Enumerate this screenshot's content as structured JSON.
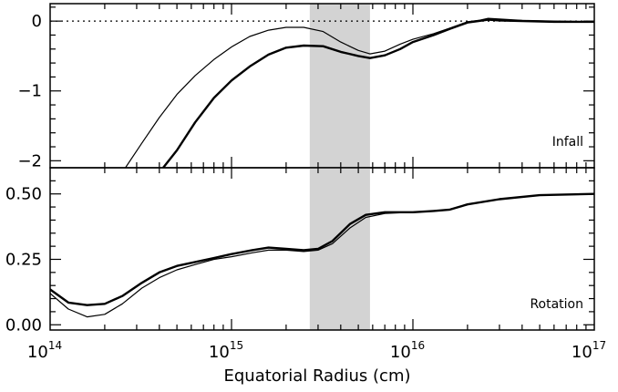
{
  "chart_data": [
    {
      "type": "line",
      "panel_label": "Infall",
      "x_scale": "log",
      "xlim": [
        100000000000000.0,
        1e+17
      ],
      "ylim": [
        -2.1,
        0.25
      ],
      "yticks": [
        0,
        -1,
        -2
      ],
      "ytick_labels": [
        "0",
        "−1",
        "−2"
      ],
      "reference_line": {
        "y": 0,
        "style": "dotted"
      },
      "shaded_band_x": [
        2700000000000000.0,
        5800000000000000.0
      ],
      "series": [
        {
          "style": "thin",
          "points": [
            [
              260000000000000.0,
              -2.1
            ],
            [
              320000000000000.0,
              -1.75
            ],
            [
              400000000000000.0,
              -1.38
            ],
            [
              500000000000000.0,
              -1.05
            ],
            [
              630000000000000.0,
              -0.78
            ],
            [
              800000000000000.0,
              -0.55
            ],
            [
              1000000000000000.0,
              -0.37
            ],
            [
              1260000000000000.0,
              -0.22
            ],
            [
              1600000000000000.0,
              -0.13
            ],
            [
              2000000000000000.0,
              -0.09
            ],
            [
              2500000000000000.0,
              -0.09
            ],
            [
              3200000000000000.0,
              -0.15
            ],
            [
              4000000000000000.0,
              -0.3
            ],
            [
              5000000000000000.0,
              -0.42
            ],
            [
              5800000000000000.0,
              -0.47
            ],
            [
              7000000000000000.0,
              -0.43
            ],
            [
              8500000000000000.0,
              -0.33
            ],
            [
              1e+16,
              -0.26
            ],
            [
              1.3e+16,
              -0.18
            ],
            [
              1.6e+16,
              -0.1
            ],
            [
              2e+16,
              -0.01
            ],
            [
              2.3e+16,
              0.01
            ],
            [
              2.6e+16,
              0.04
            ],
            [
              3e+16,
              0.03
            ],
            [
              4e+16,
              0.01
            ],
            [
              6e+16,
              0.0
            ],
            [
              1e+17,
              -0.01
            ]
          ]
        },
        {
          "style": "thick",
          "points": [
            [
              420000000000000.0,
              -2.1
            ],
            [
              500000000000000.0,
              -1.85
            ],
            [
              630000000000000.0,
              -1.45
            ],
            [
              800000000000000.0,
              -1.1
            ],
            [
              1000000000000000.0,
              -0.85
            ],
            [
              1260000000000000.0,
              -0.65
            ],
            [
              1600000000000000.0,
              -0.48
            ],
            [
              2000000000000000.0,
              -0.38
            ],
            [
              2500000000000000.0,
              -0.35
            ],
            [
              3200000000000000.0,
              -0.36
            ],
            [
              4000000000000000.0,
              -0.44
            ],
            [
              5000000000000000.0,
              -0.5
            ],
            [
              5800000000000000.0,
              -0.53
            ],
            [
              7000000000000000.0,
              -0.49
            ],
            [
              8500000000000000.0,
              -0.4
            ],
            [
              1e+16,
              -0.3
            ],
            [
              1.3e+16,
              -0.2
            ],
            [
              1.6e+16,
              -0.11
            ],
            [
              2e+16,
              -0.02
            ],
            [
              2.3e+16,
              0.0
            ],
            [
              2.6e+16,
              0.02
            ],
            [
              3e+16,
              0.01
            ],
            [
              4e+16,
              0.0
            ],
            [
              6e+16,
              -0.01
            ],
            [
              1e+17,
              -0.01
            ]
          ]
        }
      ]
    },
    {
      "type": "line",
      "panel_label": "Rotation",
      "x_scale": "log",
      "xlim": [
        100000000000000.0,
        1e+17
      ],
      "ylim": [
        -0.02,
        0.6
      ],
      "yticks": [
        0.0,
        0.25,
        0.5
      ],
      "ytick_labels": [
        "0.00",
        "0.25",
        "0.50"
      ],
      "shaded_band_x": [
        2700000000000000.0,
        5800000000000000.0
      ],
      "series": [
        {
          "style": "thin",
          "points": [
            [
              100000000000000.0,
              0.12
            ],
            [
              126000000000000.0,
              0.06
            ],
            [
              160000000000000.0,
              0.03
            ],
            [
              200000000000000.0,
              0.04
            ],
            [
              250000000000000.0,
              0.08
            ],
            [
              320000000000000.0,
              0.14
            ],
            [
              400000000000000.0,
              0.18
            ],
            [
              500000000000000.0,
              0.21
            ],
            [
              630000000000000.0,
              0.23
            ],
            [
              800000000000000.0,
              0.25
            ],
            [
              1000000000000000.0,
              0.26
            ],
            [
              1300000000000000.0,
              0.275
            ],
            [
              1600000000000000.0,
              0.285
            ],
            [
              2000000000000000.0,
              0.285
            ],
            [
              2500000000000000.0,
              0.28
            ],
            [
              3000000000000000.0,
              0.285
            ],
            [
              3600000000000000.0,
              0.31
            ],
            [
              4500000000000000.0,
              0.37
            ],
            [
              5500000000000000.0,
              0.41
            ],
            [
              7000000000000000.0,
              0.425
            ],
            [
              1e+16,
              0.43
            ],
            [
              1.3e+16,
              0.435
            ],
            [
              1.6e+16,
              0.44
            ],
            [
              2e+16,
              0.46
            ],
            [
              3e+16,
              0.48
            ],
            [
              5e+16,
              0.495
            ],
            [
              1e+17,
              0.5
            ]
          ]
        },
        {
          "style": "thick",
          "points": [
            [
              100000000000000.0,
              0.135
            ],
            [
              126000000000000.0,
              0.085
            ],
            [
              160000000000000.0,
              0.075
            ],
            [
              200000000000000.0,
              0.08
            ],
            [
              250000000000000.0,
              0.11
            ],
            [
              320000000000000.0,
              0.16
            ],
            [
              400000000000000.0,
              0.2
            ],
            [
              500000000000000.0,
              0.225
            ],
            [
              630000000000000.0,
              0.24
            ],
            [
              800000000000000.0,
              0.255
            ],
            [
              1000000000000000.0,
              0.27
            ],
            [
              1300000000000000.0,
              0.285
            ],
            [
              1600000000000000.0,
              0.295
            ],
            [
              2000000000000000.0,
              0.29
            ],
            [
              2500000000000000.0,
              0.285
            ],
            [
              3000000000000000.0,
              0.29
            ],
            [
              3600000000000000.0,
              0.32
            ],
            [
              4500000000000000.0,
              0.385
            ],
            [
              5500000000000000.0,
              0.42
            ],
            [
              7000000000000000.0,
              0.43
            ],
            [
              1e+16,
              0.43
            ],
            [
              1.3e+16,
              0.435
            ],
            [
              1.6e+16,
              0.44
            ],
            [
              2e+16,
              0.46
            ],
            [
              3e+16,
              0.48
            ],
            [
              5e+16,
              0.495
            ],
            [
              1e+17,
              0.5
            ]
          ]
        }
      ]
    }
  ],
  "x_axis": {
    "title": "Equatorial Radius (cm)",
    "major_ticks": [
      100000000000000.0,
      1000000000000000.0,
      1e+16,
      1e+17
    ],
    "tick_base": [
      "10",
      "10",
      "10",
      "10"
    ],
    "tick_exponent": [
      "14",
      "15",
      "16",
      "17"
    ]
  }
}
